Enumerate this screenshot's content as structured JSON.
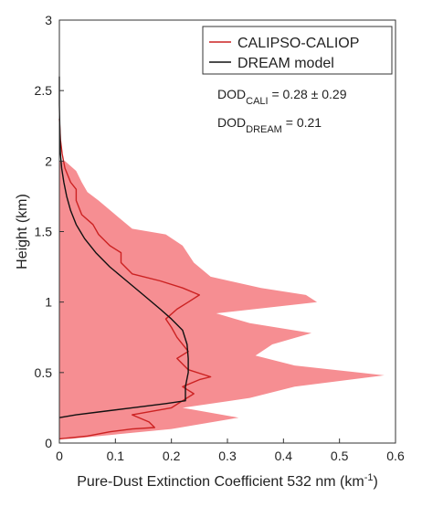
{
  "chart_data": {
    "type": "line",
    "xlabel": "Pure-Dust Extinction Coefficient 532 nm (km",
    "xlabel_sup": "-1",
    "xlabel_close": ")",
    "ylabel": "Height (km)",
    "xlim": [
      0,
      0.6
    ],
    "ylim": [
      0,
      3
    ],
    "x_ticks": [
      "0",
      "0.1",
      "0.2",
      "0.3",
      "0.4",
      "0.5",
      "0.6"
    ],
    "y_ticks": [
      "0",
      "0.5",
      "1",
      "1.5",
      "2",
      "2.5",
      "3"
    ],
    "grid": false,
    "legend_position": "top-right",
    "series": [
      {
        "name": "CALIPSO-CALIOP",
        "color": "#cc2222",
        "points": [
          [
            0.0,
            0.03
          ],
          [
            0.05,
            0.05
          ],
          [
            0.09,
            0.08
          ],
          [
            0.13,
            0.1
          ],
          [
            0.17,
            0.11
          ],
          [
            0.16,
            0.15
          ],
          [
            0.13,
            0.2
          ],
          [
            0.2,
            0.25
          ],
          [
            0.22,
            0.3
          ],
          [
            0.24,
            0.35
          ],
          [
            0.22,
            0.4
          ],
          [
            0.25,
            0.45
          ],
          [
            0.27,
            0.47
          ],
          [
            0.23,
            0.52
          ],
          [
            0.21,
            0.6
          ],
          [
            0.23,
            0.65
          ],
          [
            0.21,
            0.75
          ],
          [
            0.2,
            0.82
          ],
          [
            0.19,
            0.88
          ],
          [
            0.21,
            0.95
          ],
          [
            0.23,
            1.0
          ],
          [
            0.25,
            1.05
          ],
          [
            0.22,
            1.1
          ],
          [
            0.18,
            1.15
          ],
          [
            0.13,
            1.2
          ],
          [
            0.11,
            1.28
          ],
          [
            0.11,
            1.35
          ],
          [
            0.09,
            1.4
          ],
          [
            0.07,
            1.48
          ],
          [
            0.06,
            1.55
          ],
          [
            0.04,
            1.62
          ],
          [
            0.03,
            1.72
          ],
          [
            0.03,
            1.8
          ],
          [
            0.02,
            1.85
          ],
          [
            0.01,
            1.95
          ],
          [
            0.005,
            2.05
          ],
          [
            0.002,
            2.15
          ],
          [
            0.0,
            2.3
          ]
        ]
      },
      {
        "name": "DREAM model",
        "color": "#111111",
        "points": [
          [
            0.0,
            0.18
          ],
          [
            0.03,
            0.2
          ],
          [
            0.07,
            0.22
          ],
          [
            0.13,
            0.25
          ],
          [
            0.19,
            0.28
          ],
          [
            0.225,
            0.3
          ],
          [
            0.225,
            0.4
          ],
          [
            0.23,
            0.5
          ],
          [
            0.23,
            0.6
          ],
          [
            0.228,
            0.7
          ],
          [
            0.22,
            0.8
          ],
          [
            0.2,
            0.88
          ],
          [
            0.18,
            0.95
          ],
          [
            0.15,
            1.05
          ],
          [
            0.12,
            1.15
          ],
          [
            0.09,
            1.25
          ],
          [
            0.065,
            1.35
          ],
          [
            0.045,
            1.45
          ],
          [
            0.03,
            1.55
          ],
          [
            0.02,
            1.65
          ],
          [
            0.013,
            1.75
          ],
          [
            0.008,
            1.85
          ],
          [
            0.004,
            1.95
          ],
          [
            0.002,
            2.05
          ],
          [
            0.001,
            2.2
          ],
          [
            0.0,
            2.4
          ],
          [
            0.0,
            2.6
          ]
        ]
      }
    ],
    "uncertainty_band": {
      "color": "#f47a7f",
      "upper": [
        [
          0.02,
          0.03
        ],
        [
          0.2,
          0.1
        ],
        [
          0.32,
          0.18
        ],
        [
          0.22,
          0.25
        ],
        [
          0.34,
          0.32
        ],
        [
          0.42,
          0.4
        ],
        [
          0.58,
          0.48
        ],
        [
          0.42,
          0.55
        ],
        [
          0.35,
          0.62
        ],
        [
          0.38,
          0.7
        ],
        [
          0.45,
          0.78
        ],
        [
          0.34,
          0.85
        ],
        [
          0.28,
          0.92
        ],
        [
          0.46,
          1.0
        ],
        [
          0.44,
          1.05
        ],
        [
          0.36,
          1.1
        ],
        [
          0.27,
          1.18
        ],
        [
          0.24,
          1.28
        ],
        [
          0.22,
          1.4
        ],
        [
          0.19,
          1.48
        ],
        [
          0.13,
          1.52
        ],
        [
          0.1,
          1.62
        ],
        [
          0.07,
          1.72
        ],
        [
          0.05,
          1.78
        ],
        [
          0.04,
          1.85
        ],
        [
          0.03,
          1.93
        ],
        [
          0.01,
          2.0
        ]
      ],
      "lower": [
        [
          0.0,
          2.0
        ],
        [
          0.0,
          0.03
        ]
      ]
    },
    "annotations": [
      {
        "base": "DOD",
        "sub": "CALI",
        "tail": " = 0.28 ± 0.29"
      },
      {
        "base": "DOD",
        "sub": "DREAM",
        "tail": " = 0.21"
      }
    ]
  }
}
